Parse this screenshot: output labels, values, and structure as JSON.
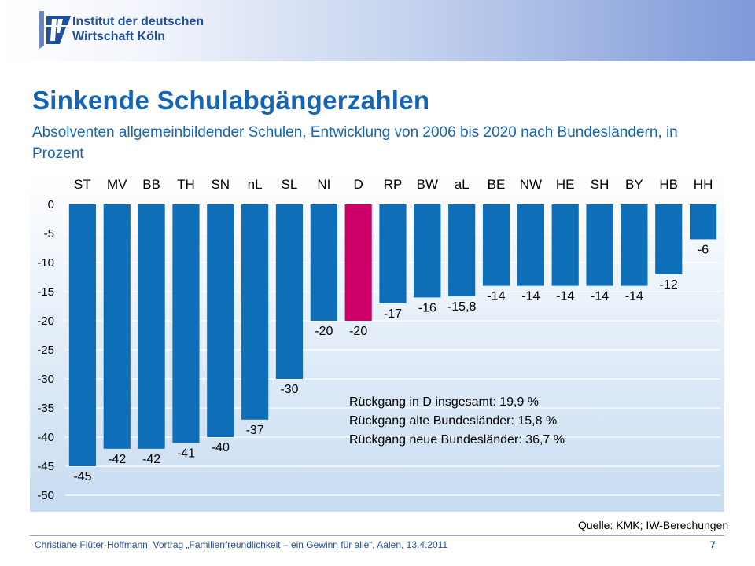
{
  "header": {
    "logo_line1": "Institut der deutschen",
    "logo_line2": "Wirtschaft Köln"
  },
  "slide": {
    "title": "Sinkende Schulabgängerzahlen",
    "subtitle": "Absolventen allgemeinbildender Schulen, Entwicklung von 2006 bis 2020 nach Bundesländern, in Prozent",
    "source": "Quelle: KMK; IW-Berechungen",
    "footer": "Christiane Flüter-Hoffmann, Vortrag „Familienfreundlichkeit – ein Gewinn für alle“, Aalen, 13.4.2011",
    "page_number": "7"
  },
  "chart_data": {
    "type": "bar",
    "categories": [
      "ST",
      "MV",
      "BB",
      "TH",
      "SN",
      "nL",
      "SL",
      "NI",
      "D",
      "RP",
      "BW",
      "aL",
      "BE",
      "NW",
      "HE",
      "SH",
      "BY",
      "HB",
      "HH"
    ],
    "values": [
      -45,
      -42,
      -42,
      -41,
      -40,
      -37,
      -30,
      -20,
      -20,
      -17,
      -16,
      -15.8,
      -14,
      -14,
      -14,
      -14,
      -14,
      -12,
      -6
    ],
    "data_labels": [
      "-45",
      "-42",
      "-42",
      "-41",
      "-40",
      "-37",
      "-30",
      "-20",
      "-20",
      "-17",
      "-16",
      "-15,8",
      "-14",
      "-14",
      "-14",
      "-14",
      "-14",
      "-12",
      "-6"
    ],
    "highlight_category": "D",
    "colors": {
      "bar": "#0e6eb8",
      "highlight": "#cc0066",
      "background_top": "#ffffff",
      "background_bottom": "#c7dcf1",
      "grid": "#ffffff"
    },
    "ylim": [
      -50,
      0
    ],
    "yticks": [
      "0",
      "-5",
      "-10",
      "-15",
      "-20",
      "-25",
      "-30",
      "-35",
      "-40",
      "-45",
      "-50"
    ],
    "grid": true,
    "annotations": [
      "Rückgang in D insgesamt: 19,9 %",
      "Rückgang alte Bundesländer: 15,8 %",
      "Rückgang neue Bundesländer: 36,7 %"
    ]
  }
}
